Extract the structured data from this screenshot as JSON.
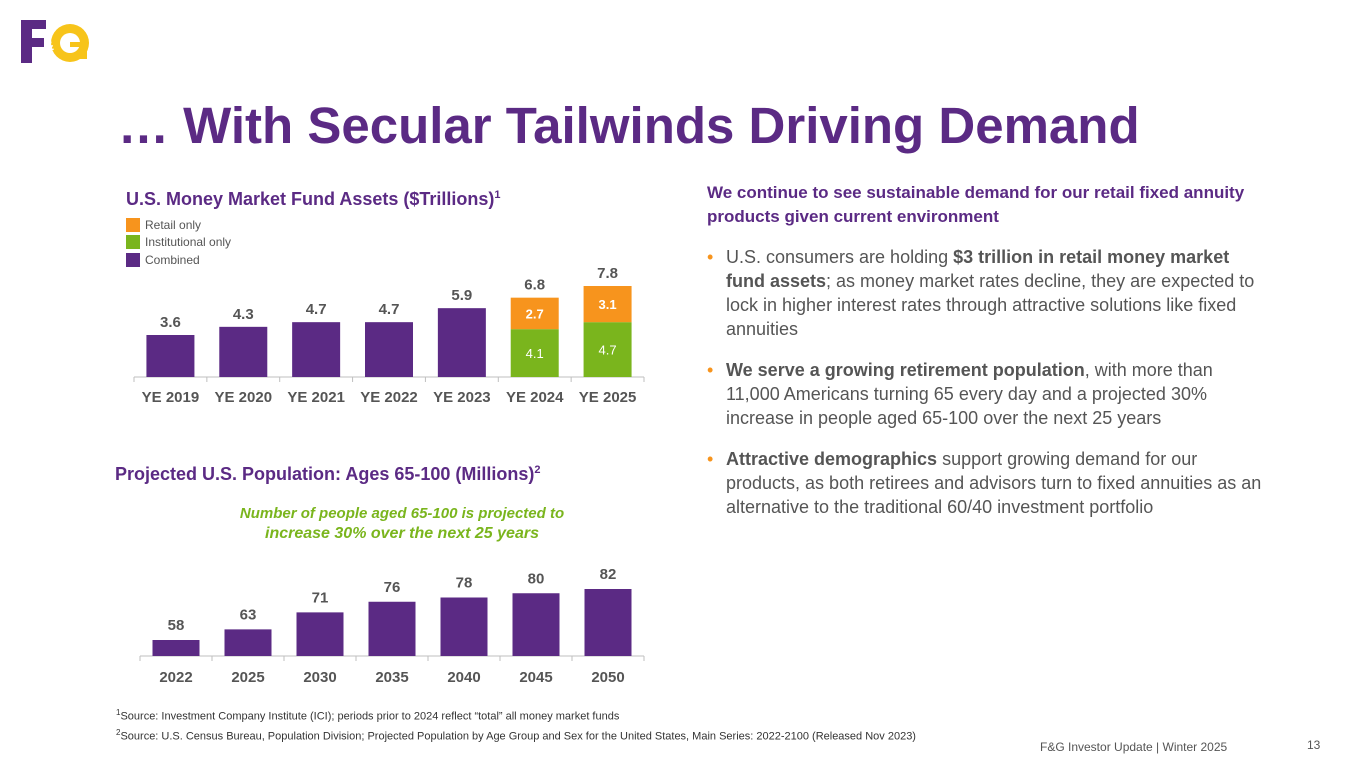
{
  "logo": {
    "text": "F&G",
    "purple": "#5b2a84",
    "yellow": "#f7c41a"
  },
  "title": "… With Secular Tailwinds Driving Demand",
  "colors": {
    "combined": "#5b2a84",
    "retail": "#f7941d",
    "institutional": "#7ab51d",
    "accent_text": "#5b2a84"
  },
  "chart_data": [
    {
      "type": "bar",
      "stacked": true,
      "title": "U.S. Money Market Fund Assets ($Trillions)",
      "title_sup": "1",
      "legend": [
        "Retail only",
        "Institutional only",
        "Combined"
      ],
      "categories": [
        "YE 2019",
        "YE 2020",
        "YE 2021",
        "YE 2022",
        "YE 2023",
        "YE 2024",
        "YE 2025"
      ],
      "totals": [
        3.6,
        4.3,
        4.7,
        4.7,
        5.9,
        6.8,
        7.8
      ],
      "series": [
        {
          "name": "Combined",
          "values": [
            3.6,
            4.3,
            4.7,
            4.7,
            5.9,
            null,
            null
          ]
        },
        {
          "name": "Institutional only",
          "values": [
            null,
            null,
            null,
            null,
            null,
            4.1,
            4.7
          ]
        },
        {
          "name": "Retail only",
          "values": [
            null,
            null,
            null,
            null,
            null,
            2.7,
            3.1
          ]
        }
      ],
      "ylim": [
        0,
        7.8
      ],
      "total_labels": [
        "3.6",
        "4.3",
        "4.7",
        "4.7",
        "5.9",
        "6.8",
        "7.8"
      ],
      "inst_labels": [
        "4.1",
        "4.7"
      ],
      "retail_labels": [
        "2.7",
        "3.1"
      ]
    },
    {
      "type": "bar",
      "title": "Projected U.S. Population: Ages 65-100 (Millions)",
      "title_sup": "2",
      "categories": [
        "2022",
        "2025",
        "2030",
        "2035",
        "2040",
        "2045",
        "2050"
      ],
      "values": [
        58,
        63,
        71,
        76,
        78,
        80,
        82
      ],
      "value_labels": [
        "58",
        "63",
        "71",
        "76",
        "78",
        "80",
        "82"
      ],
      "annotation_line1": "Number of people aged 65-100 is projected to",
      "annotation_line2": "increase 30% over the next 25 years"
    }
  ],
  "right": {
    "heading": "We continue to see sustainable demand for our retail fixed annuity products given current environment",
    "bullets": [
      {
        "pre": "U.S. consumers are holding ",
        "bold": "$3 trillion in retail money market fund assets",
        "post": "; as money market rates decline, they are expected to lock in higher interest rates through attractive solutions like fixed annuities"
      },
      {
        "pre": "",
        "bold": "We serve a growing retirement population",
        "post": ", with more than 11,000 Americans turning 65 every day and a projected 30% increase in people aged 65-100 over the next 25 years"
      },
      {
        "pre": "",
        "bold": "Attractive demographics",
        "post": " support growing demand for our products, as both retirees and advisors turn to fixed annuities as an alternative to the traditional 60/40 investment portfolio"
      }
    ],
    "bullet_glyph": "•"
  },
  "footnotes": [
    {
      "sup": "1",
      "text": "Source: Investment Company Institute (ICI); periods prior to 2024 reflect “total” all money market funds"
    },
    {
      "sup": "2",
      "text": "Source: U.S. Census Bureau, Population Division; Projected Population by Age Group and Sex for the United States, Main Series: 2022-2100 (Released Nov 2023)"
    }
  ],
  "footer": "F&G Investor Update |  Winter 2025",
  "page_number": "13"
}
